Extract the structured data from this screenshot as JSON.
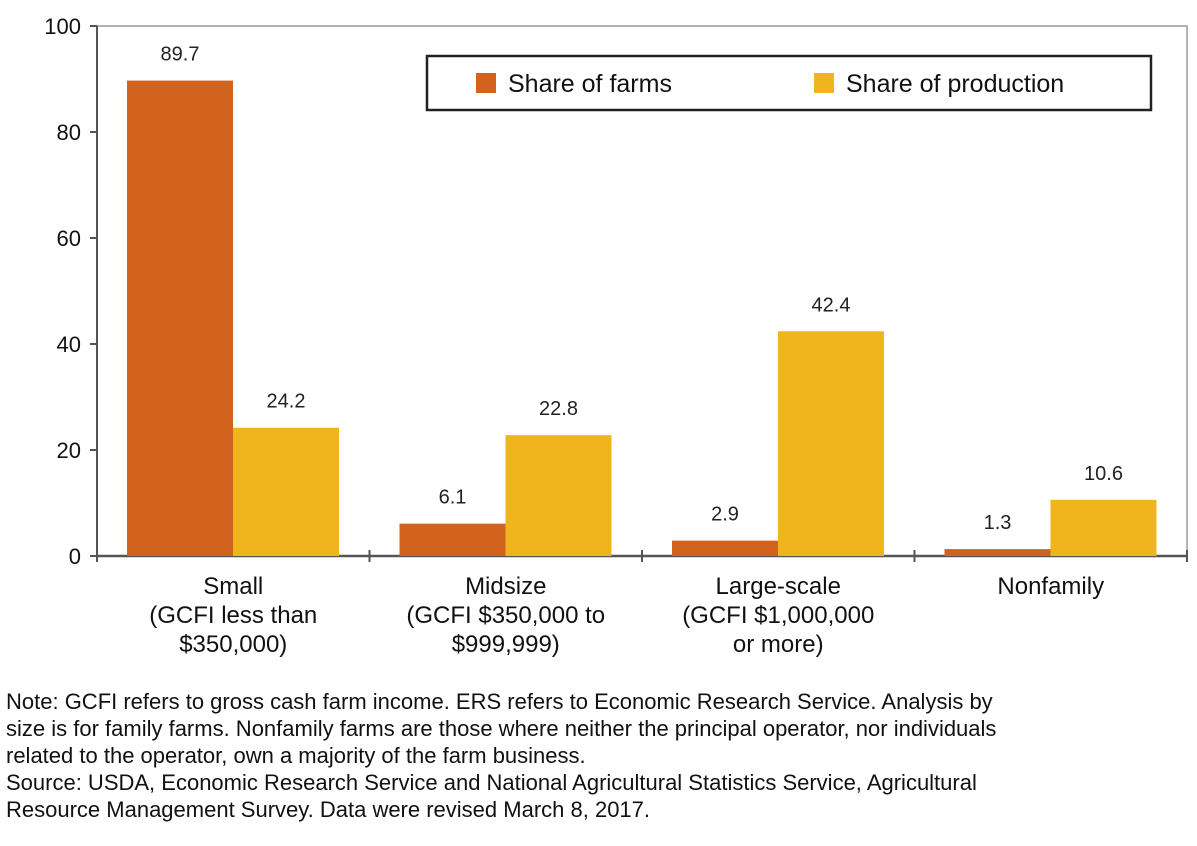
{
  "chart_data": {
    "type": "bar",
    "categories": [
      [
        "Small",
        "(GCFI less than",
        "$350,000)"
      ],
      [
        "Midsize",
        "(GCFI $350,000 to",
        "$999,999)"
      ],
      [
        "Large-scale",
        "(GCFI $1,000,000",
        "or more)"
      ],
      [
        "Nonfamily"
      ]
    ],
    "series": [
      {
        "name": "Share of farms",
        "color": "#d2631f",
        "values": [
          89.7,
          6.1,
          2.9,
          1.3
        ]
      },
      {
        "name": "Share of production",
        "color": "#f0b51c",
        "values": [
          24.2,
          22.8,
          42.4,
          10.6
        ]
      }
    ],
    "data_labels": {
      "Share of farms": [
        "89.7",
        "6.1",
        "2.9",
        "1.3"
      ],
      "Share of production": [
        "24.2",
        "22.8",
        "42.4",
        "10.6"
      ]
    },
    "ylim": [
      0,
      100
    ],
    "yticks": [
      "0",
      "20",
      "40",
      "60",
      "80",
      "100"
    ],
    "grid": false,
    "legend_position": "top-right",
    "title": "",
    "xlabel": "",
    "ylabel": ""
  },
  "notes": {
    "note_lines": [
      "Note: GCFI refers to gross cash farm income. ERS refers to Economic Research Service. Analysis by",
      "size is for family farms. Nonfamily farms are those where neither the principal operator, nor individuals",
      "related to the operator, own a majority of the farm business."
    ],
    "source_lines": [
      "Source: USDA, Economic Research Service and National Agricultural Statistics Service, Agricultural",
      "Resource Management Survey. Data were revised March 8, 2017."
    ]
  }
}
